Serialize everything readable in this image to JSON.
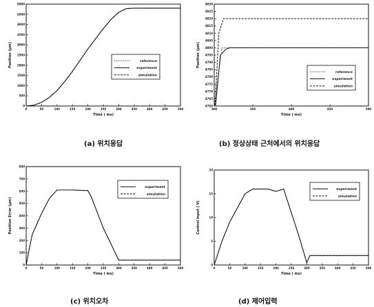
{
  "captions": {
    "a": "(a) 위치응답",
    "b": "(b) 정상상태 근처에서의 위치응답",
    "c": "(c) 위치오차",
    "d": "(d) 제어입력"
  },
  "chart_data": [
    {
      "type": "line",
      "xlabel": "Time ( ms)",
      "ylabel": "Position (μm)",
      "xlim": [
        0,
        500
      ],
      "ylim": [
        0,
        5000
      ],
      "x_ticks": [
        "0",
        "50",
        "100",
        "150",
        "200",
        "250",
        "300",
        "350",
        "400",
        "450",
        "500"
      ],
      "y_ticks": [
        "0",
        "500",
        "1000",
        "1500",
        "2000",
        "2500",
        "3000",
        "3500",
        "4000",
        "4500",
        "5000"
      ],
      "legend": [
        "reference",
        "experiment",
        "simulation"
      ],
      "legend_position": "right",
      "series": [
        {
          "name": "reference",
          "style": "dotted",
          "x": [
            0,
            25,
            50,
            75,
            100,
            125,
            150,
            175,
            200,
            225,
            250,
            275,
            300,
            325,
            350,
            400,
            450,
            500
          ],
          "y": [
            0,
            40,
            180,
            420,
            760,
            1200,
            1700,
            2250,
            2800,
            3300,
            3800,
            4250,
            4600,
            4780,
            4800,
            4800,
            4800,
            4800
          ]
        },
        {
          "name": "experiment",
          "style": "solid",
          "x": [
            0,
            25,
            50,
            75,
            100,
            125,
            150,
            175,
            200,
            225,
            250,
            275,
            300,
            325,
            350,
            400,
            450,
            500
          ],
          "y": [
            0,
            40,
            180,
            420,
            760,
            1200,
            1700,
            2250,
            2800,
            3300,
            3800,
            4250,
            4600,
            4780,
            4800,
            4800,
            4800,
            4800
          ]
        },
        {
          "name": "simulation",
          "style": "dashed",
          "x": [
            0,
            25,
            50,
            75,
            100,
            125,
            150,
            175,
            200,
            225,
            250,
            275,
            300,
            325,
            350,
            400,
            450,
            500
          ],
          "y": [
            0,
            40,
            180,
            420,
            760,
            1200,
            1700,
            2250,
            2800,
            3300,
            3800,
            4250,
            4600,
            4780,
            4800,
            4800,
            4800,
            4800
          ]
        }
      ]
    },
    {
      "type": "line",
      "xlabel": "Time ( ms)",
      "ylabel": "Position (μm)",
      "xlim": [
        300,
        500
      ],
      "ylim": [
        4760,
        4830
      ],
      "x_ticks": [
        "300",
        "350",
        "400",
        "450",
        "500"
      ],
      "y_ticks": [
        "4760",
        "4765",
        "4770",
        "4775",
        "4780",
        "4785",
        "4790",
        "4795",
        "4800",
        "4805",
        "4810",
        "4815",
        "4820",
        "4825",
        "4830"
      ],
      "legend": [
        "reference",
        "experiment",
        "simulation"
      ],
      "legend_position": "bottom-right",
      "series": [
        {
          "name": "reference",
          "style": "dotted",
          "x": [
            300,
            310,
            320,
            500
          ],
          "y": [
            4760,
            4800,
            4800,
            4800
          ]
        },
        {
          "name": "experiment",
          "style": "solid",
          "x": [
            300,
            308,
            315,
            320,
            500
          ],
          "y": [
            4750,
            4795,
            4799,
            4800,
            4800
          ]
        },
        {
          "name": "simulation",
          "style": "dashed",
          "x": [
            300,
            306,
            312,
            320,
            500
          ],
          "y": [
            4750,
            4810,
            4820,
            4820,
            4820
          ]
        }
      ]
    },
    {
      "type": "line",
      "xlabel": "Time ( ms)",
      "ylabel": "Position Error (μm)",
      "xlim": [
        0,
        500
      ],
      "ylim": [
        0,
        800
      ],
      "x_ticks": [
        "0",
        "50",
        "100",
        "150",
        "200",
        "250",
        "300",
        "350",
        "400",
        "450",
        "500"
      ],
      "y_ticks": [
        "0",
        "100",
        "200",
        "300",
        "400",
        "500",
        "600",
        "700",
        "800"
      ],
      "legend": [
        "experiment",
        "simulation"
      ],
      "legend_position": "top-right",
      "series": [
        {
          "name": "experiment",
          "style": "solid",
          "x": [
            0,
            10,
            20,
            50,
            75,
            100,
            150,
            200,
            210,
            250,
            300,
            320,
            500
          ],
          "y": [
            0,
            130,
            250,
            420,
            540,
            610,
            610,
            605,
            560,
            300,
            40,
            40,
            40
          ]
        },
        {
          "name": "simulation",
          "style": "dashed",
          "x": [
            0,
            10,
            20,
            50,
            75,
            100,
            150,
            200,
            210,
            250,
            300,
            320,
            500
          ],
          "y": [
            0,
            130,
            250,
            420,
            540,
            610,
            610,
            605,
            560,
            300,
            40,
            40,
            40
          ]
        }
      ]
    },
    {
      "type": "line",
      "xlabel": "Time ( ms)",
      "ylabel": "Control Input ( V)",
      "xlim": [
        0,
        500
      ],
      "ylim": [
        0,
        20
      ],
      "x_ticks": [
        "0",
        "50",
        "100",
        "150",
        "200",
        "250",
        "300",
        "350",
        "400",
        "450",
        "500"
      ],
      "y_ticks": [
        "0",
        "5",
        "10",
        "15",
        "20"
      ],
      "legend": [
        "experiment",
        "simulation"
      ],
      "legend_position": "top-right",
      "series": [
        {
          "name": "experiment",
          "style": "solid",
          "x": [
            0,
            25,
            50,
            75,
            100,
            125,
            150,
            175,
            200,
            225,
            250,
            275,
            300,
            310,
            320,
            500
          ],
          "y": [
            0,
            5,
            9,
            12,
            15,
            16,
            16,
            16,
            15.5,
            16,
            11,
            6,
            0.5,
            2,
            2,
            2
          ]
        },
        {
          "name": "simulation",
          "style": "dashed",
          "x": [
            0,
            25,
            50,
            75,
            100,
            125,
            150,
            175,
            200,
            225,
            250,
            275,
            300,
            310,
            320,
            500
          ],
          "y": [
            0,
            5,
            9,
            12,
            15,
            16,
            16,
            16,
            15.5,
            16,
            11,
            6,
            0.5,
            2,
            2,
            2
          ]
        }
      ]
    }
  ]
}
